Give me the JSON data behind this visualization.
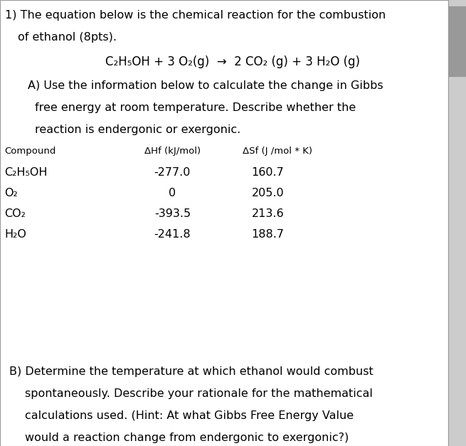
{
  "bg_color": "#ffffff",
  "line1": "1) The equation below is the chemical reaction for the combustion",
  "line2": "of ethanol (8pts).",
  "equation": "C₂H₅OH + 3 O₂(g)  →  2 CO₂ (g) + 3 H₂O (g)",
  "partA_line1": "A) Use the information below to calculate the change in Gibbs",
  "partA_line2": "free energy at room temperature. Describe whether the",
  "partA_line3": "reaction is endergonic or exergonic.",
  "header_compound": "Compound",
  "header_dH": "ΔHf (kJ/mol)",
  "header_dS": "ΔSf (J /mol * K)",
  "compounds": [
    "C₂H₅OH",
    "O₂",
    "CO₂",
    "H₂O"
  ],
  "dH_values": [
    "-277.0",
    "0",
    "-393.5",
    "-241.8"
  ],
  "dS_values": [
    "160.7",
    "205.0",
    "213.6",
    "188.7"
  ],
  "partB_line1": "B) Determine the temperature at which ethanol would combust",
  "partB_line2": "spontaneously. Describe your rationale for the mathematical",
  "partB_line3": "calculations used. (Hint: At what Gibbs Free Energy Value",
  "partB_line4": "would a reaction change from endergonic to exergonic?)",
  "font_size_main": 11.5,
  "font_size_small": 9.5,
  "font_size_equation": 12.0,
  "font_family": "DejaVu Sans"
}
